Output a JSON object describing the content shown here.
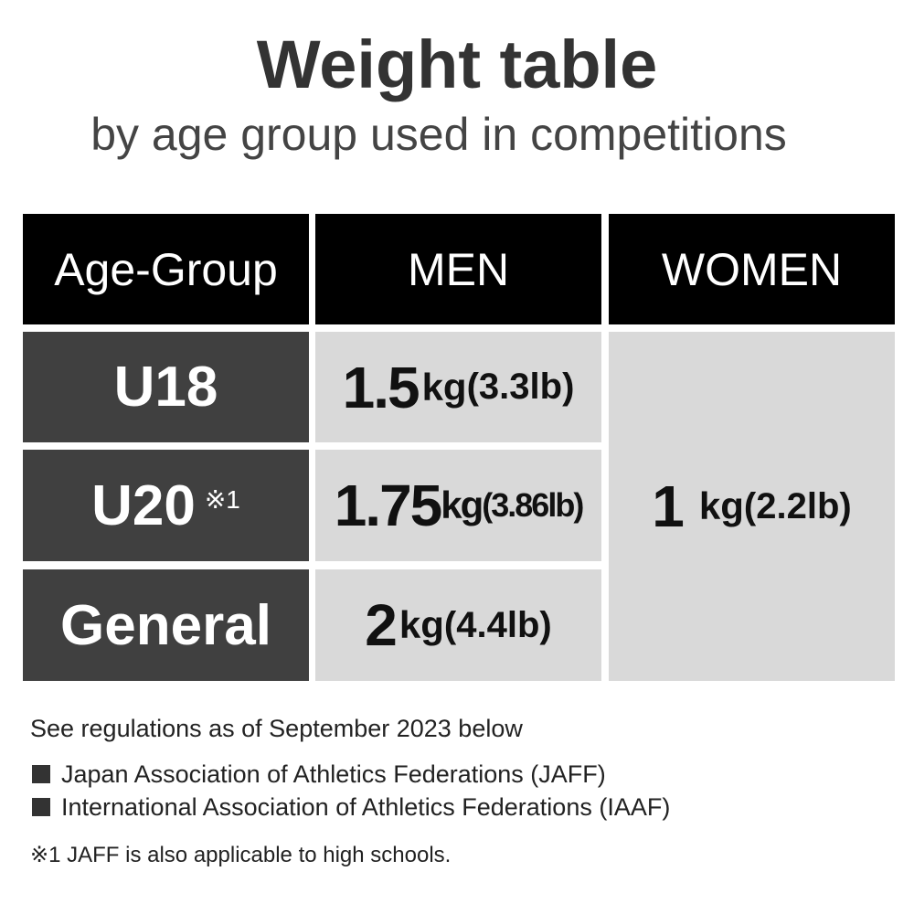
{
  "header": {
    "title": "Weight table",
    "subtitle": "by age group used in competitions"
  },
  "table": {
    "columns": [
      "Age-Group",
      "MEN",
      "WOMEN"
    ],
    "rows": [
      {
        "group": "U18",
        "men": {
          "amount": "1.5",
          "unit": "kg",
          "alt": "(3.3lb)"
        }
      },
      {
        "group": "U20",
        "note": "※1",
        "men": {
          "amount": "1.75",
          "unit": "kg",
          "alt": "(3.86lb)"
        }
      },
      {
        "group": "General",
        "men": {
          "amount": "2",
          "unit": "kg",
          "alt": "(4.4lb)"
        }
      }
    ],
    "women": {
      "amount": "1",
      "unit": "kg",
      "alt": "(2.2lb)"
    }
  },
  "notes": {
    "intro": "See regulations as of September 2023 below",
    "items": [
      "Japan Association of Athletics Federations (JAFF)",
      "International Association of Athletics Federations (IAAF)"
    ],
    "footnote": "※1 JAFF is also applicable to high schools."
  }
}
